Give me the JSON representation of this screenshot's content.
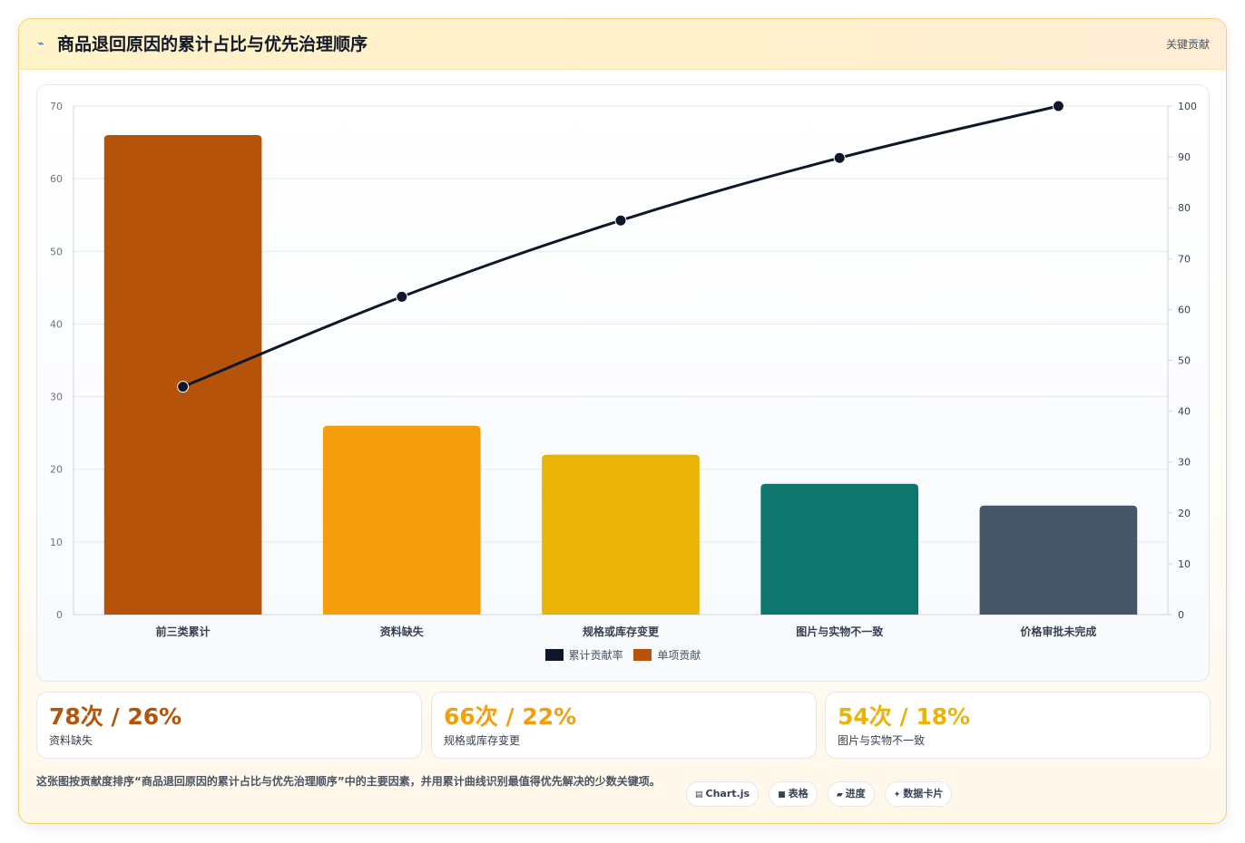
{
  "header": {
    "icon": "lightning-icon",
    "title": "商品退回原因的累计占比与优先治理顺序",
    "tag": "关键贡献"
  },
  "colors": {
    "line": "#0f172a",
    "bars": [
      "#b45309",
      "#f59e0b",
      "#eab308",
      "#0f766e",
      "#475569"
    ]
  },
  "chart_data": {
    "type": "bar",
    "title": "",
    "xlabel": "",
    "ylabel": "",
    "categories": [
      "前三类累计",
      "资料缺失",
      "规格或库存变更",
      "图片与实物不一致",
      "价格审批未完成"
    ],
    "series": [
      {
        "name": "单项贡献",
        "type": "bar",
        "axis": "left",
        "values": [
          66,
          26,
          22,
          18,
          15
        ]
      },
      {
        "name": "累计贡献率",
        "type": "line",
        "axis": "right",
        "values": [
          44.8,
          62.5,
          77.5,
          89.8,
          100
        ]
      }
    ],
    "ylim": [
      0,
      70
    ],
    "yticks": [
      0,
      10,
      20,
      30,
      40,
      50,
      60,
      70
    ],
    "y2lim": [
      0,
      100
    ],
    "y2ticks": [
      0,
      10,
      20,
      30,
      40,
      50,
      60,
      70,
      80,
      90,
      100
    ],
    "grid": true,
    "legend_position": "bottom",
    "legend": [
      "累计贡献率",
      "单项贡献"
    ]
  },
  "stats": [
    {
      "value": "78次 / 26%",
      "label": "资料缺失",
      "color": "#b45309"
    },
    {
      "value": "66次 / 22%",
      "label": "规格或库存变更",
      "color": "#f59e0b"
    },
    {
      "value": "54次 / 18%",
      "label": "图片与实物不一致",
      "color": "#eab308"
    }
  ],
  "description": "这张图按贡献度排序“商品退回原因的累计占比与优先治理顺序”中的主要因素，并用累计曲线识别最值得优先解决的少数关键项。",
  "chips": [
    {
      "icon": "chart-icon",
      "glyph": "▤",
      "label": "Chart.js"
    },
    {
      "icon": "table-icon",
      "glyph": "■",
      "label": "表格"
    },
    {
      "icon": "progress-icon",
      "glyph": "▰",
      "label": "进度"
    },
    {
      "icon": "sparkle-icon",
      "glyph": "✦",
      "label": "数据卡片"
    }
  ]
}
